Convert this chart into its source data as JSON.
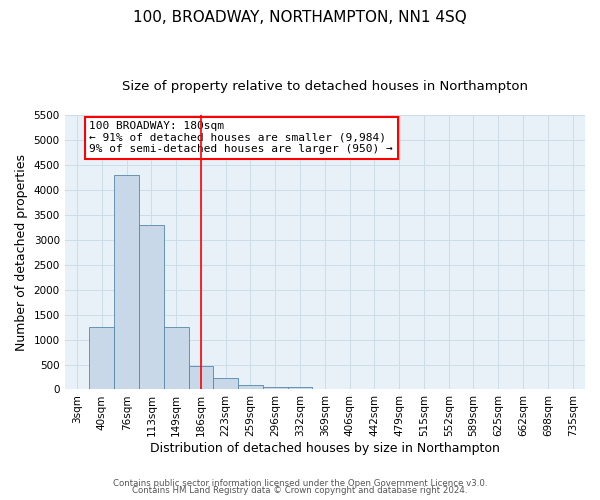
{
  "title": "100, BROADWAY, NORTHAMPTON, NN1 4SQ",
  "subtitle": "Size of property relative to detached houses in Northampton",
  "xlabel": "Distribution of detached houses by size in Northampton",
  "ylabel": "Number of detached properties",
  "categories": [
    "3sqm",
    "40sqm",
    "76sqm",
    "113sqm",
    "149sqm",
    "186sqm",
    "223sqm",
    "259sqm",
    "296sqm",
    "332sqm",
    "369sqm",
    "406sqm",
    "442sqm",
    "479sqm",
    "515sqm",
    "552sqm",
    "589sqm",
    "625sqm",
    "662sqm",
    "698sqm",
    "735sqm"
  ],
  "bar_heights": [
    0,
    1250,
    4300,
    3300,
    1250,
    480,
    220,
    90,
    50,
    50,
    0,
    0,
    0,
    0,
    0,
    0,
    0,
    0,
    0,
    0,
    0
  ],
  "bar_color": "#c8d8e8",
  "bar_edge_color": "#5588aa",
  "red_line_index": 5,
  "annotation_text": "100 BROADWAY: 180sqm\n← 91% of detached houses are smaller (9,984)\n9% of semi-detached houses are larger (950) →",
  "annotation_box_color": "white",
  "annotation_box_edge_color": "red",
  "ylim": [
    0,
    5500
  ],
  "yticks": [
    0,
    500,
    1000,
    1500,
    2000,
    2500,
    3000,
    3500,
    4000,
    4500,
    5000,
    5500
  ],
  "title_fontsize": 11,
  "subtitle_fontsize": 9.5,
  "label_fontsize": 9,
  "tick_fontsize": 7.5,
  "annotation_fontsize": 8,
  "footer_line1": "Contains HM Land Registry data © Crown copyright and database right 2024.",
  "footer_line2": "Contains public sector information licensed under the Open Government Licence v3.0.",
  "grid_color": "#ccdde8",
  "background_color": "#e8f0f8"
}
